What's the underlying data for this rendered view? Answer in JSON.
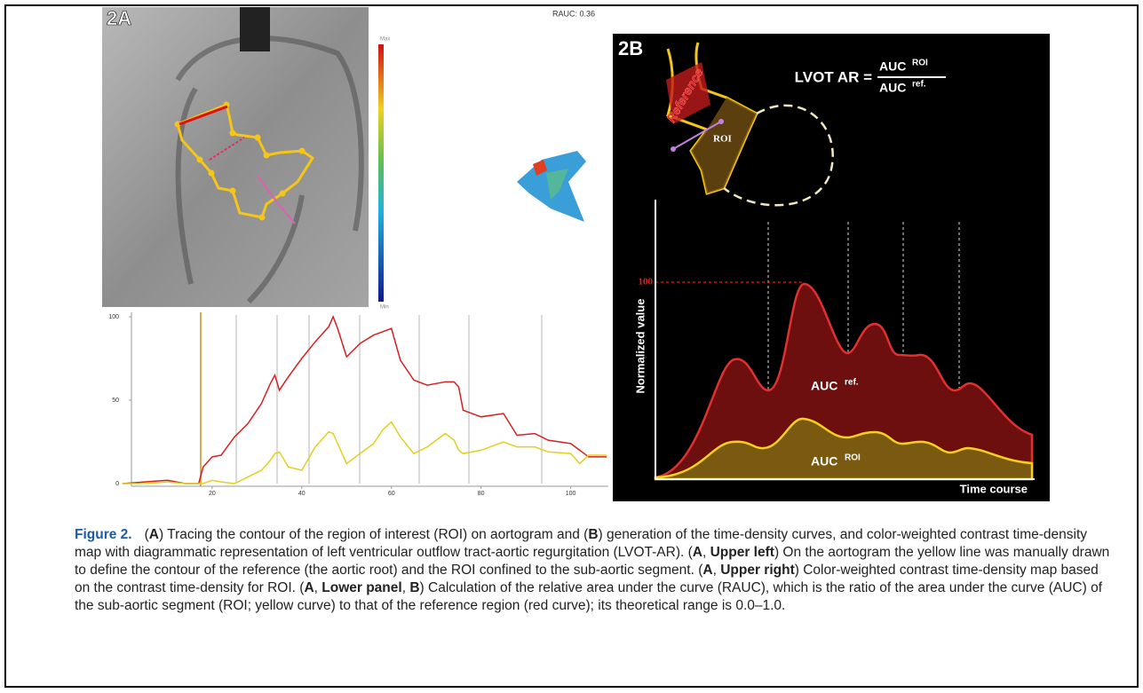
{
  "panel_a": {
    "label": "2A",
    "colorbar": {
      "max": "Max",
      "min": "Min"
    },
    "rauc": "RAUC: 0.36"
  },
  "chart_data": {
    "type": "line",
    "x": [
      0,
      5,
      10,
      14,
      17,
      18,
      20,
      22,
      25,
      28,
      31,
      33,
      34,
      35,
      37,
      40,
      43,
      46,
      47,
      48,
      50,
      53,
      56,
      58,
      60,
      62,
      65,
      68,
      72,
      74,
      75,
      76,
      80,
      85,
      88,
      92,
      95,
      100,
      102,
      104,
      108
    ],
    "series": [
      {
        "color": "#d42020",
        "values": [
          0,
          1,
          2,
          0,
          0,
          10,
          16,
          17,
          28,
          36,
          48,
          60,
          65,
          56,
          64,
          75,
          85,
          94,
          100,
          93,
          76,
          84,
          89,
          91,
          93,
          74,
          62,
          59,
          61,
          61,
          58,
          44,
          40,
          42,
          29,
          30,
          26,
          24,
          20,
          16,
          16
        ]
      },
      {
        "color": "#e0d020",
        "values": [
          0,
          0,
          1,
          0,
          0,
          0,
          2,
          1,
          0,
          4,
          8,
          14,
          18,
          19,
          10,
          8,
          22,
          31,
          30,
          24,
          12,
          18,
          24,
          32,
          37,
          28,
          18,
          22,
          30,
          26,
          20,
          18,
          20,
          25,
          22,
          22,
          19,
          18,
          12,
          17,
          17
        ]
      }
    ],
    "xlim": [
      2,
      108
    ],
    "xticks": [
      20,
      40,
      60,
      80,
      100
    ],
    "ylim": [
      0,
      100
    ],
    "yticks": [
      0,
      50,
      100
    ]
  },
  "panel_b": {
    "label": "2B",
    "formula": {
      "lhs": "LVOT AR =",
      "num": "AUC",
      "num_sup": "ROI",
      "den": "AUC",
      "den_sup": "ref."
    },
    "reference": "Reference",
    "roi": "ROI",
    "peak": "100",
    "y_label": "Normalized value",
    "x_label": "Time course",
    "auc_ref": "AUC",
    "auc_ref_sup": "ref.",
    "auc_roi": "AUC",
    "auc_roi_sup": "ROI"
  },
  "caption": {
    "label": "Figure 2.",
    "parts": [
      "(",
      "A",
      ") Tracing the contour of the region of interest (ROI) on aortogram and (",
      "B",
      ") generation of the time-density curves, and color-weighted contrast time-density map with diagrammatic representation of left ventricular outflow tract-aortic regurgitation (LVOT-AR). (",
      "A",
      ", ",
      "Upper left",
      ") On the aortogram the yellow line was manually drawn to define the contour of the reference (the aortic root) and the ROI confined to the sub-aortic segment. (",
      "A",
      ", ",
      "Upper right",
      ") Color-weighted contrast time-density map based on the contrast time-density for ROI. (",
      "A",
      ", ",
      "Lower panel",
      ", ",
      "B",
      ") Calculation of the relative area under the curve (RAUC), which is the ratio of the area under the curve (AUC) of the sub-aortic segment (ROI; yellow curve) to that of the reference region (red curve); its theoretical range is 0.0–1.0."
    ]
  }
}
